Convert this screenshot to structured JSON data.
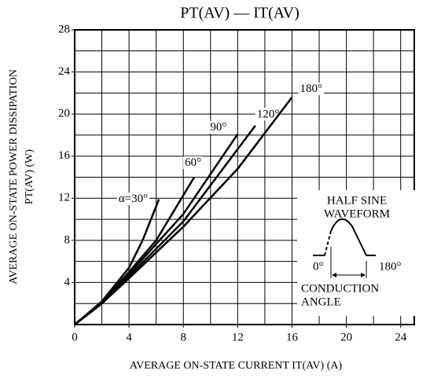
{
  "chart_data": {
    "type": "line",
    "title": "PT(AV) — IT(AV)",
    "x_label": "AVERAGE ON-STATE CURRENT   IT(AV)   (A)",
    "y_label": [
      "AVERAGE ON-STATE POWER DISSIPATION",
      "PT(AV)   (W)"
    ],
    "xlim": [
      0,
      25
    ],
    "ylim": [
      0,
      28
    ],
    "xticks": [
      0,
      4,
      8,
      12,
      16,
      20,
      24
    ],
    "yticks": [
      4,
      8,
      12,
      16,
      20,
      24,
      28
    ],
    "grid_step": 2,
    "grid": true,
    "series": [
      {
        "name": "α=30°",
        "color": "#000000",
        "x": [
          0,
          2,
          4,
          5,
          6.2
        ],
        "values": [
          0,
          2.2,
          5.4,
          8,
          11.9
        ]
      },
      {
        "name": "60°",
        "color": "#000000",
        "x": [
          0,
          2,
          4,
          6,
          8.8
        ],
        "values": [
          0,
          2.1,
          5,
          8,
          14
        ]
      },
      {
        "name": "90°",
        "color": "#000000",
        "x": [
          0,
          2,
          4,
          8,
          12
        ],
        "values": [
          0,
          2,
          4.8,
          10.5,
          18.1
        ]
      },
      {
        "name": "120°",
        "color": "#000000",
        "x": [
          0,
          2,
          4,
          8,
          13.3
        ],
        "values": [
          0,
          2,
          4.6,
          9.8,
          18.9
        ]
      },
      {
        "name": "180°",
        "color": "#000000",
        "x": [
          0,
          2,
          4,
          8,
          12,
          16
        ],
        "values": [
          0,
          2,
          4.4,
          9.3,
          14.8,
          21.6
        ]
      }
    ],
    "inset": {
      "title": [
        "HALF SINE",
        "WAVEFORM"
      ],
      "start": "0°",
      "end": "180°",
      "caption": [
        "CONDUCTION",
        "ANGLE"
      ]
    }
  }
}
